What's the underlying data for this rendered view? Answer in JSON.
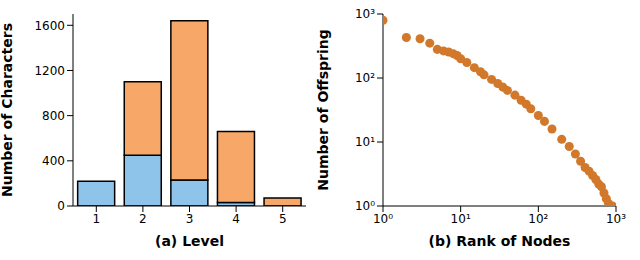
{
  "chart_data": [
    {
      "type": "bar",
      "x_label": "(a) Level",
      "y_label": "Number of Characters",
      "categories": [
        "1",
        "2",
        "3",
        "4",
        "5"
      ],
      "series": [
        {
          "color": "#8ec3ea",
          "values": [
            220,
            450,
            230,
            30,
            0
          ]
        },
        {
          "color": "#f7a868",
          "values": [
            0,
            650,
            1410,
            630,
            70
          ]
        }
      ],
      "stacked": true,
      "grid": false,
      "ylim": [
        0,
        1700
      ],
      "yticks": [
        0,
        400,
        800,
        1200,
        1600
      ]
    },
    {
      "type": "scatter",
      "x_label": "(b) Rank of Nodes",
      "y_label": "Number of Offspring",
      "log": true,
      "grid": false,
      "color": "#d2782a",
      "marker": "circle",
      "x": [
        1,
        2,
        3,
        4,
        5,
        6,
        7,
        8,
        9,
        10,
        12,
        15,
        18,
        20,
        25,
        30,
        35,
        40,
        50,
        60,
        70,
        80,
        100,
        120,
        150,
        200,
        250,
        300,
        350,
        400,
        450,
        500,
        550,
        600,
        650,
        700,
        750,
        800,
        850,
        900
      ],
      "values": [
        800,
        430,
        410,
        350,
        280,
        265,
        255,
        240,
        225,
        200,
        175,
        145,
        125,
        112,
        95,
        82,
        72,
        64,
        54,
        45,
        39,
        33,
        26,
        21,
        16,
        11,
        8.5,
        6.5,
        5,
        4,
        3.5,
        3,
        2.6,
        2.2,
        2,
        1.6,
        1.3,
        1.1,
        1,
        1
      ],
      "xlim": [
        1,
        1000
      ],
      "ylim": [
        1,
        1000
      ],
      "xticks": [
        {
          "value": 1,
          "label": "10⁰"
        },
        {
          "value": 10,
          "label": "10¹"
        },
        {
          "value": 100,
          "label": "10²"
        },
        {
          "value": 1000,
          "label": "10³"
        }
      ],
      "yticks": [
        {
          "value": 1,
          "label": "10⁰"
        },
        {
          "value": 10,
          "label": "10¹"
        },
        {
          "value": 100,
          "label": "10²"
        },
        {
          "value": 1000,
          "label": "10³"
        }
      ]
    }
  ]
}
